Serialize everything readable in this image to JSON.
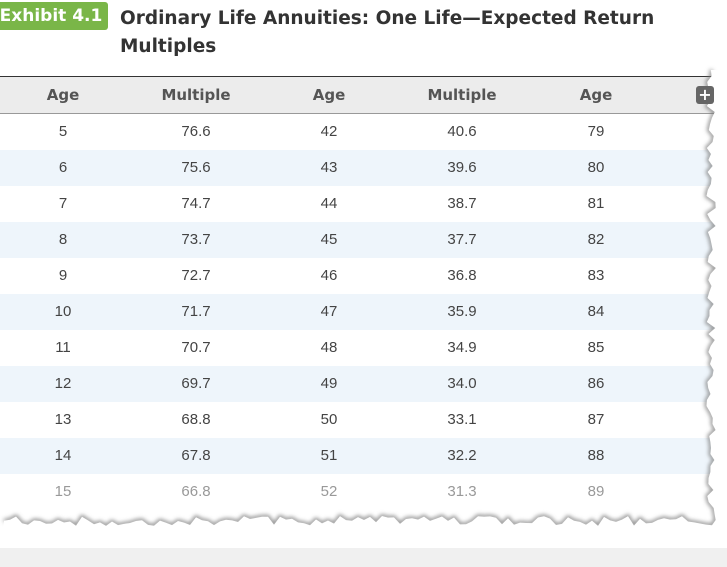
{
  "exhibit_label": "Exhibit 4.1",
  "title": "Ordinary Life Annuities: One Life—Expected Return Multiples",
  "table": {
    "headers": [
      "Age",
      "Multiple",
      "Age",
      "Multiple",
      "Age"
    ],
    "rows": [
      [
        "5",
        "76.6",
        "42",
        "40.6",
        "79"
      ],
      [
        "6",
        "75.6",
        "43",
        "39.6",
        "80"
      ],
      [
        "7",
        "74.7",
        "44",
        "38.7",
        "81"
      ],
      [
        "8",
        "73.7",
        "45",
        "37.7",
        "82"
      ],
      [
        "9",
        "72.7",
        "46",
        "36.8",
        "83"
      ],
      [
        "10",
        "71.7",
        "47",
        "35.9",
        "84"
      ],
      [
        "11",
        "70.7",
        "48",
        "34.9",
        "85"
      ],
      [
        "12",
        "69.7",
        "49",
        "34.0",
        "86"
      ],
      [
        "13",
        "68.8",
        "50",
        "33.1",
        "87"
      ],
      [
        "14",
        "67.8",
        "51",
        "32.2",
        "88"
      ],
      [
        "15",
        "66.8",
        "52",
        "31.3",
        "89"
      ]
    ]
  }
}
